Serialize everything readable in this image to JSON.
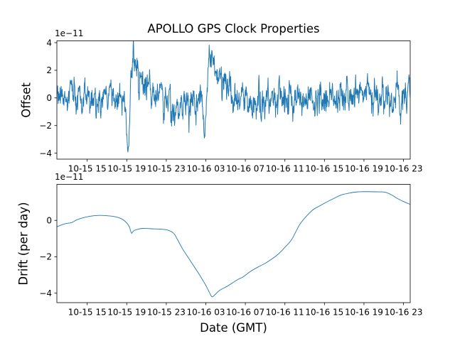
{
  "figure_title": "APOLLO GPS Clock Properties",
  "line_color": "#1f77b4",
  "chart_data": [
    {
      "type": "line",
      "role": "offset-subplot",
      "title": "APOLLO GPS Clock Properties",
      "ylabel": "Offset",
      "y_multiplier_label": "1e−11",
      "xlim_hours": [
        0,
        35.75
      ],
      "ylim": [
        -4.43,
        4.13
      ],
      "grid": false,
      "legend": "none",
      "line_color": "#1f77b4",
      "xticks": [
        {
          "t": 3.07,
          "label": "10-15 15"
        },
        {
          "t": 7.07,
          "label": "10-15 19"
        },
        {
          "t": 11.07,
          "label": "10-15 23"
        },
        {
          "t": 15.07,
          "label": "10-16 03"
        },
        {
          "t": 19.07,
          "label": "10-16 07"
        },
        {
          "t": 23.07,
          "label": "10-16 11"
        },
        {
          "t": 27.07,
          "label": "10-16 15"
        },
        {
          "t": 31.07,
          "label": "10-16 19"
        },
        {
          "t": 35.07,
          "label": "10-16 23"
        }
      ],
      "yticks": [
        {
          "v": -4,
          "label": "−4"
        },
        {
          "v": -2,
          "label": "−2"
        },
        {
          "v": 0,
          "label": "0"
        },
        {
          "v": 2,
          "label": "2"
        },
        {
          "v": 4,
          "label": "4"
        }
      ],
      "series_generator": {
        "comment": "dense noisy offset trace in 1e-11 units; AR(1) noise plus glitch events read from the screenshot",
        "n": 1400,
        "seed": 9,
        "ar": 0.62,
        "sigma": 0.48,
        "events": [
          {
            "type": "vspike",
            "t": 7.17,
            "half_width": 0.3,
            "amp": -4.05
          },
          {
            "type": "pulse",
            "t0": 7.38,
            "rise": 0.28,
            "peak": 3.45,
            "tau": 0.95
          },
          {
            "type": "box",
            "t0": 11.5,
            "t1": 12.45,
            "amp": -1.25
          },
          {
            "type": "vspike",
            "t": 14.93,
            "half_width": 0.24,
            "amp": -2.95
          },
          {
            "type": "pulse",
            "t0": 15.1,
            "rise": 0.33,
            "peak": 3.45,
            "tau": 0.95
          },
          {
            "type": "box",
            "t0": 19.35,
            "t1": 20.2,
            "amp": -0.8
          },
          {
            "type": "box",
            "t0": 29.9,
            "t1": 31.9,
            "amp": 0.35
          },
          {
            "type": "vspike",
            "t": 35.62,
            "half_width": 0.18,
            "amp": 1.9
          }
        ]
      }
    },
    {
      "type": "line",
      "role": "drift-subplot",
      "ylabel": "Drift (per day)",
      "xlabel": "Date (GMT)",
      "y_multiplier_label": "1e−11",
      "xlim_hours": [
        0,
        35.75
      ],
      "ylim": [
        -4.52,
        1.98
      ],
      "grid": false,
      "legend": "none",
      "line_color": "#1f77b4",
      "xticks": [
        {
          "t": 3.07,
          "label": "10-15 15"
        },
        {
          "t": 7.07,
          "label": "10-15 19"
        },
        {
          "t": 11.07,
          "label": "10-15 23"
        },
        {
          "t": 15.07,
          "label": "10-16 03"
        },
        {
          "t": 19.07,
          "label": "10-16 07"
        },
        {
          "t": 23.07,
          "label": "10-16 11"
        },
        {
          "t": 27.07,
          "label": "10-16 15"
        },
        {
          "t": 31.07,
          "label": "10-16 19"
        },
        {
          "t": 35.07,
          "label": "10-16 23"
        }
      ],
      "yticks": [
        {
          "v": -4,
          "label": "−4"
        },
        {
          "v": -2,
          "label": "−2"
        },
        {
          "v": 0,
          "label": "0"
        }
      ],
      "series": {
        "t_hours": [
          0,
          0.8,
          1.5,
          2.1,
          3.2,
          4.1,
          5.0,
          5.9,
          6.6,
          7.1,
          7.35,
          7.55,
          7.75,
          8.1,
          8.7,
          9.5,
          10.5,
          11.2,
          11.8,
          12.2,
          12.7,
          13.3,
          13.9,
          14.5,
          15.1,
          15.45,
          15.7,
          16.0,
          16.45,
          17.3,
          18.3,
          18.8,
          19.6,
          20.5,
          21.2,
          22.3,
          23.0,
          23.7,
          24.2,
          24.6,
          25.2,
          25.9,
          26.6,
          27.3,
          28.0,
          28.8,
          29.6,
          30.3,
          31.2,
          32.3,
          33.2,
          33.8,
          34.4,
          35.1,
          35.75
        ],
        "values_1e11": [
          -0.35,
          -0.19,
          -0.12,
          0.05,
          0.21,
          0.27,
          0.26,
          0.2,
          0.07,
          -0.16,
          -0.38,
          -0.7,
          -0.58,
          -0.5,
          -0.44,
          -0.46,
          -0.48,
          -0.53,
          -0.7,
          -1.05,
          -1.55,
          -2.05,
          -2.55,
          -3.05,
          -3.6,
          -3.98,
          -4.2,
          -4.08,
          -3.85,
          -3.6,
          -3.25,
          -3.12,
          -2.8,
          -2.52,
          -2.32,
          -1.9,
          -1.52,
          -1.1,
          -0.6,
          -0.2,
          0.2,
          0.58,
          0.8,
          1.01,
          1.2,
          1.4,
          1.5,
          1.56,
          1.58,
          1.57,
          1.55,
          1.42,
          1.22,
          1.03,
          0.88
        ]
      }
    }
  ]
}
